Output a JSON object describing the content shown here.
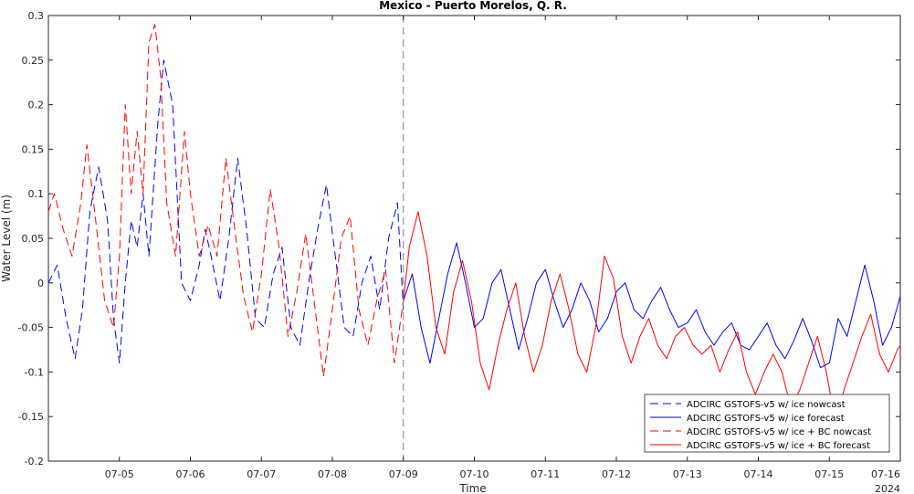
{
  "chart_data": {
    "type": "line",
    "title": "Mexico - Puerto Morelos, Q. R.",
    "xlabel": "Time",
    "ylabel": "Water Level (m)",
    "year_label": "2024",
    "x_ticks": [
      "07-05",
      "07-06",
      "07-07",
      "07-08",
      "07-09",
      "07-10",
      "07-11",
      "07-12",
      "07-13",
      "07-14",
      "07-15",
      "07-16"
    ],
    "xlim": [
      "07-04 00:00",
      "07-16 00:00"
    ],
    "ylim": [
      -0.2,
      0.3
    ],
    "y_ticks": [
      -0.2,
      -0.15,
      -0.1,
      -0.05,
      0,
      0.05,
      0.1,
      0.15,
      0.2,
      0.25,
      0.3
    ],
    "nowcast_forecast_divider": "07-09 00:00",
    "legend_position": "bottom-right",
    "grid": false,
    "series": [
      {
        "name": "ADCIRC GSTOFS-v5 w/ ice nowcast",
        "color": "#0000ff",
        "style": "dashed",
        "x": [
          "07-04 00:00",
          "07-04 03:00",
          "07-04 06:00",
          "07-04 09:00",
          "07-04 11:30",
          "07-04 14:00",
          "07-04 17:00",
          "07-04 20:00",
          "07-04 22:00",
          "07-05 00:00",
          "07-05 02:00",
          "07-05 04:00",
          "07-05 06:00",
          "07-05 08:00",
          "07-05 10:00",
          "07-05 13:00",
          "07-05 15:00",
          "07-05 18:00",
          "07-05 21:00",
          "07-06 00:00",
          "07-06 03:00",
          "07-06 05:00",
          "07-06 07:00",
          "07-06 10:00",
          "07-06 13:00",
          "07-06 16:00",
          "07-06 19:00",
          "07-06 22:00",
          "07-07 01:00",
          "07-07 04:00",
          "07-07 07:00",
          "07-07 10:00",
          "07-07 13:00",
          "07-07 16:00",
          "07-07 19:00",
          "07-07 22:00",
          "07-08 01:00",
          "07-08 04:00",
          "07-08 07:00",
          "07-08 10:00",
          "07-08 13:00",
          "07-08 16:00",
          "07-08 19:00",
          "07-08 22:00",
          "07-09 00:00"
        ],
        "values": [
          0.0,
          0.02,
          -0.04,
          -0.085,
          -0.03,
          0.08,
          0.13,
          0.07,
          -0.04,
          -0.09,
          0.0,
          0.07,
          0.04,
          0.1,
          0.03,
          0.18,
          0.25,
          0.2,
          0.0,
          -0.02,
          0.02,
          0.06,
          0.03,
          -0.02,
          0.05,
          0.14,
          0.06,
          -0.04,
          -0.05,
          0.01,
          0.04,
          -0.05,
          -0.07,
          0.0,
          0.06,
          0.11,
          0.03,
          -0.05,
          -0.06,
          0.0,
          0.03,
          -0.03,
          0.05,
          0.09,
          -0.03
        ]
      },
      {
        "name": "ADCIRC GSTOFS-v5 w/ ice forecast",
        "color": "#0000ff",
        "style": "solid",
        "x": [
          "07-09 00:00",
          "07-09 03:00",
          "07-09 06:00",
          "07-09 09:00",
          "07-09 12:00",
          "07-09 15:00",
          "07-09 18:00",
          "07-09 21:00",
          "07-10 00:00",
          "07-10 03:00",
          "07-10 06:00",
          "07-10 09:00",
          "07-10 12:00",
          "07-10 15:00",
          "07-10 18:00",
          "07-10 21:00",
          "07-11 00:00",
          "07-11 03:00",
          "07-11 06:00",
          "07-11 09:00",
          "07-11 12:00",
          "07-11 15:00",
          "07-11 18:00",
          "07-11 21:00",
          "07-12 00:00",
          "07-12 03:00",
          "07-12 06:00",
          "07-12 09:00",
          "07-12 12:00",
          "07-12 15:00",
          "07-12 18:00",
          "07-12 21:00",
          "07-13 00:00",
          "07-13 03:00",
          "07-13 06:00",
          "07-13 09:00",
          "07-13 12:00",
          "07-13 15:00",
          "07-13 18:00",
          "07-13 21:00",
          "07-14 00:00",
          "07-14 03:00",
          "07-14 06:00",
          "07-14 09:00",
          "07-14 12:00",
          "07-14 15:00",
          "07-14 18:00",
          "07-14 21:00",
          "07-15 00:00",
          "07-15 03:00",
          "07-15 06:00",
          "07-15 09:00",
          "07-15 12:00",
          "07-15 15:00",
          "07-15 18:00",
          "07-15 21:00",
          "07-16 00:00"
        ],
        "values": [
          -0.02,
          0.01,
          -0.05,
          -0.09,
          -0.04,
          0.01,
          0.045,
          0.0,
          -0.05,
          -0.04,
          0.0,
          0.015,
          -0.03,
          -0.075,
          -0.04,
          0.0,
          0.015,
          -0.02,
          -0.05,
          -0.03,
          0.0,
          -0.02,
          -0.055,
          -0.04,
          -0.01,
          0.0,
          -0.03,
          -0.04,
          -0.02,
          -0.005,
          -0.03,
          -0.05,
          -0.045,
          -0.03,
          -0.055,
          -0.07,
          -0.055,
          -0.045,
          -0.07,
          -0.075,
          -0.06,
          -0.045,
          -0.07,
          -0.085,
          -0.065,
          -0.04,
          -0.065,
          -0.095,
          -0.09,
          -0.04,
          -0.06,
          -0.02,
          0.02,
          -0.02,
          -0.07,
          -0.05,
          -0.015
        ]
      },
      {
        "name": "ADCIRC GSTOFS-v5 w/ ice + BC nowcast",
        "color": "#ff0000",
        "style": "dashed",
        "x": [
          "07-04 00:00",
          "07-04 02:00",
          "07-04 05:00",
          "07-04 08:00",
          "07-04 11:00",
          "07-04 13:00",
          "07-04 16:00",
          "07-04 19:00",
          "07-04 22:00",
          "07-05 00:00",
          "07-05 02:00",
          "07-05 04:00",
          "07-05 06:00",
          "07-05 08:00",
          "07-05 10:00",
          "07-05 12:00",
          "07-05 14:00",
          "07-05 16:00",
          "07-05 19:00",
          "07-05 22:00",
          "07-06 00:00",
          "07-06 03:00",
          "07-06 06:00",
          "07-06 09:00",
          "07-06 12:00",
          "07-06 15:00",
          "07-06 18:00",
          "07-06 21:00",
          "07-07 00:00",
          "07-07 03:00",
          "07-07 06:00",
          "07-07 09:00",
          "07-07 12:00",
          "07-07 15:00",
          "07-07 18:00",
          "07-07 21:00",
          "07-08 00:00",
          "07-08 03:00",
          "07-08 06:00",
          "07-08 09:00",
          "07-08 12:00",
          "07-08 15:00",
          "07-08 18:00",
          "07-08 21:00",
          "07-09 00:00"
        ],
        "values": [
          0.08,
          0.1,
          0.06,
          0.03,
          0.09,
          0.155,
          0.07,
          -0.02,
          -0.05,
          0.03,
          0.2,
          0.1,
          0.17,
          0.1,
          0.27,
          0.29,
          0.23,
          0.09,
          0.03,
          0.17,
          0.1,
          0.03,
          0.065,
          0.03,
          0.14,
          0.06,
          -0.015,
          -0.055,
          0.01,
          0.105,
          0.04,
          -0.06,
          -0.01,
          0.055,
          -0.025,
          -0.105,
          -0.03,
          0.05,
          0.075,
          -0.03,
          -0.07,
          -0.02,
          0.015,
          -0.09,
          -0.02
        ]
      },
      {
        "name": "ADCIRC GSTOFS-v5 w/ ice + BC forecast",
        "color": "#ff0000",
        "style": "solid",
        "x": [
          "07-09 00:00",
          "07-09 02:00",
          "07-09 05:00",
          "07-09 08:00",
          "07-09 11:00",
          "07-09 14:00",
          "07-09 17:00",
          "07-09 20:00",
          "07-09 23:00",
          "07-10 02:00",
          "07-10 05:00",
          "07-10 08:00",
          "07-10 11:00",
          "07-10 14:00",
          "07-10 17:00",
          "07-10 20:00",
          "07-10 23:00",
          "07-11 02:00",
          "07-11 05:00",
          "07-11 08:00",
          "07-11 11:00",
          "07-11 14:00",
          "07-11 17:00",
          "07-11 20:00",
          "07-11 23:00",
          "07-12 02:00",
          "07-12 05:00",
          "07-12 08:00",
          "07-12 11:00",
          "07-12 14:00",
          "07-12 17:00",
          "07-12 20:00",
          "07-12 23:00",
          "07-13 02:00",
          "07-13 05:00",
          "07-13 08:00",
          "07-13 11:00",
          "07-13 14:00",
          "07-13 17:00",
          "07-13 20:00",
          "07-13 23:00",
          "07-14 02:00",
          "07-14 05:00",
          "07-14 08:00",
          "07-14 11:00",
          "07-14 14:00",
          "07-14 17:00",
          "07-14 20:00",
          "07-14 23:00",
          "07-15 02:00",
          "07-15 05:00",
          "07-15 08:00",
          "07-15 11:00",
          "07-15 14:00",
          "07-15 17:00",
          "07-15 20:00",
          "07-15 23:00",
          "07-16 00:00"
        ],
        "values": [
          -0.02,
          0.04,
          0.08,
          0.03,
          -0.05,
          -0.08,
          -0.01,
          0.025,
          -0.02,
          -0.09,
          -0.12,
          -0.07,
          -0.03,
          0.0,
          -0.06,
          -0.1,
          -0.07,
          -0.02,
          0.01,
          -0.03,
          -0.08,
          -0.1,
          -0.05,
          0.03,
          0.005,
          -0.06,
          -0.09,
          -0.06,
          -0.04,
          -0.07,
          -0.085,
          -0.06,
          -0.05,
          -0.07,
          -0.08,
          -0.07,
          -0.1,
          -0.075,
          -0.055,
          -0.1,
          -0.125,
          -0.1,
          -0.08,
          -0.1,
          -0.14,
          -0.12,
          -0.09,
          -0.06,
          -0.1,
          -0.155,
          -0.12,
          -0.09,
          -0.06,
          -0.035,
          -0.08,
          -0.1,
          -0.075,
          -0.07
        ]
      }
    ]
  }
}
